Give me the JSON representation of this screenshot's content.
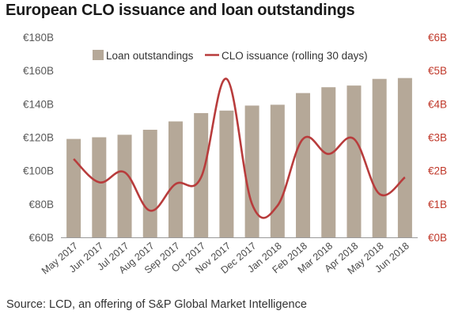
{
  "title": "European CLO issuance and loan outstandings",
  "source": "Source: LCD, an offering of S&P Global Market Intelligence",
  "chart_data": {
    "type": "bar",
    "categories": [
      "May 2017",
      "Jun 2017",
      "Jul 2017",
      "Aug 2017",
      "Sep 2017",
      "Oct 2017",
      "Nov 2017",
      "Dec 2017",
      "Jan 2018",
      "Feb 2018",
      "Mar 2018",
      "Apr 2018",
      "May 2018",
      "Jun 2018"
    ],
    "series": [
      {
        "name": "Loan outstandings",
        "type": "bar",
        "axis": "left",
        "color": "#b5a898",
        "values": [
          119,
          120,
          121.5,
          124.5,
          129.5,
          134.5,
          136,
          139,
          139.5,
          146.5,
          150,
          151,
          155,
          155.5
        ]
      },
      {
        "name": "CLO issuance (rolling 30 days)",
        "type": "line",
        "axis": "right",
        "color": "#b83c3c",
        "values": [
          2.35,
          1.65,
          1.95,
          0.8,
          1.6,
          1.8,
          4.75,
          1.0,
          0.95,
          2.95,
          2.5,
          2.95,
          1.3,
          1.8
        ]
      }
    ],
    "y_left": {
      "ylim": [
        60,
        180
      ],
      "ticks": [
        "€60B",
        "€80B",
        "€100B",
        "€120B",
        "€140B",
        "€160B",
        "€180B"
      ]
    },
    "y_right": {
      "ylim": [
        0,
        6
      ],
      "ticks": [
        "€0B",
        "€1B",
        "€2B",
        "€3B",
        "€4B",
        "€5B",
        "€6B"
      ]
    },
    "grid": false,
    "legend_position": "top"
  }
}
